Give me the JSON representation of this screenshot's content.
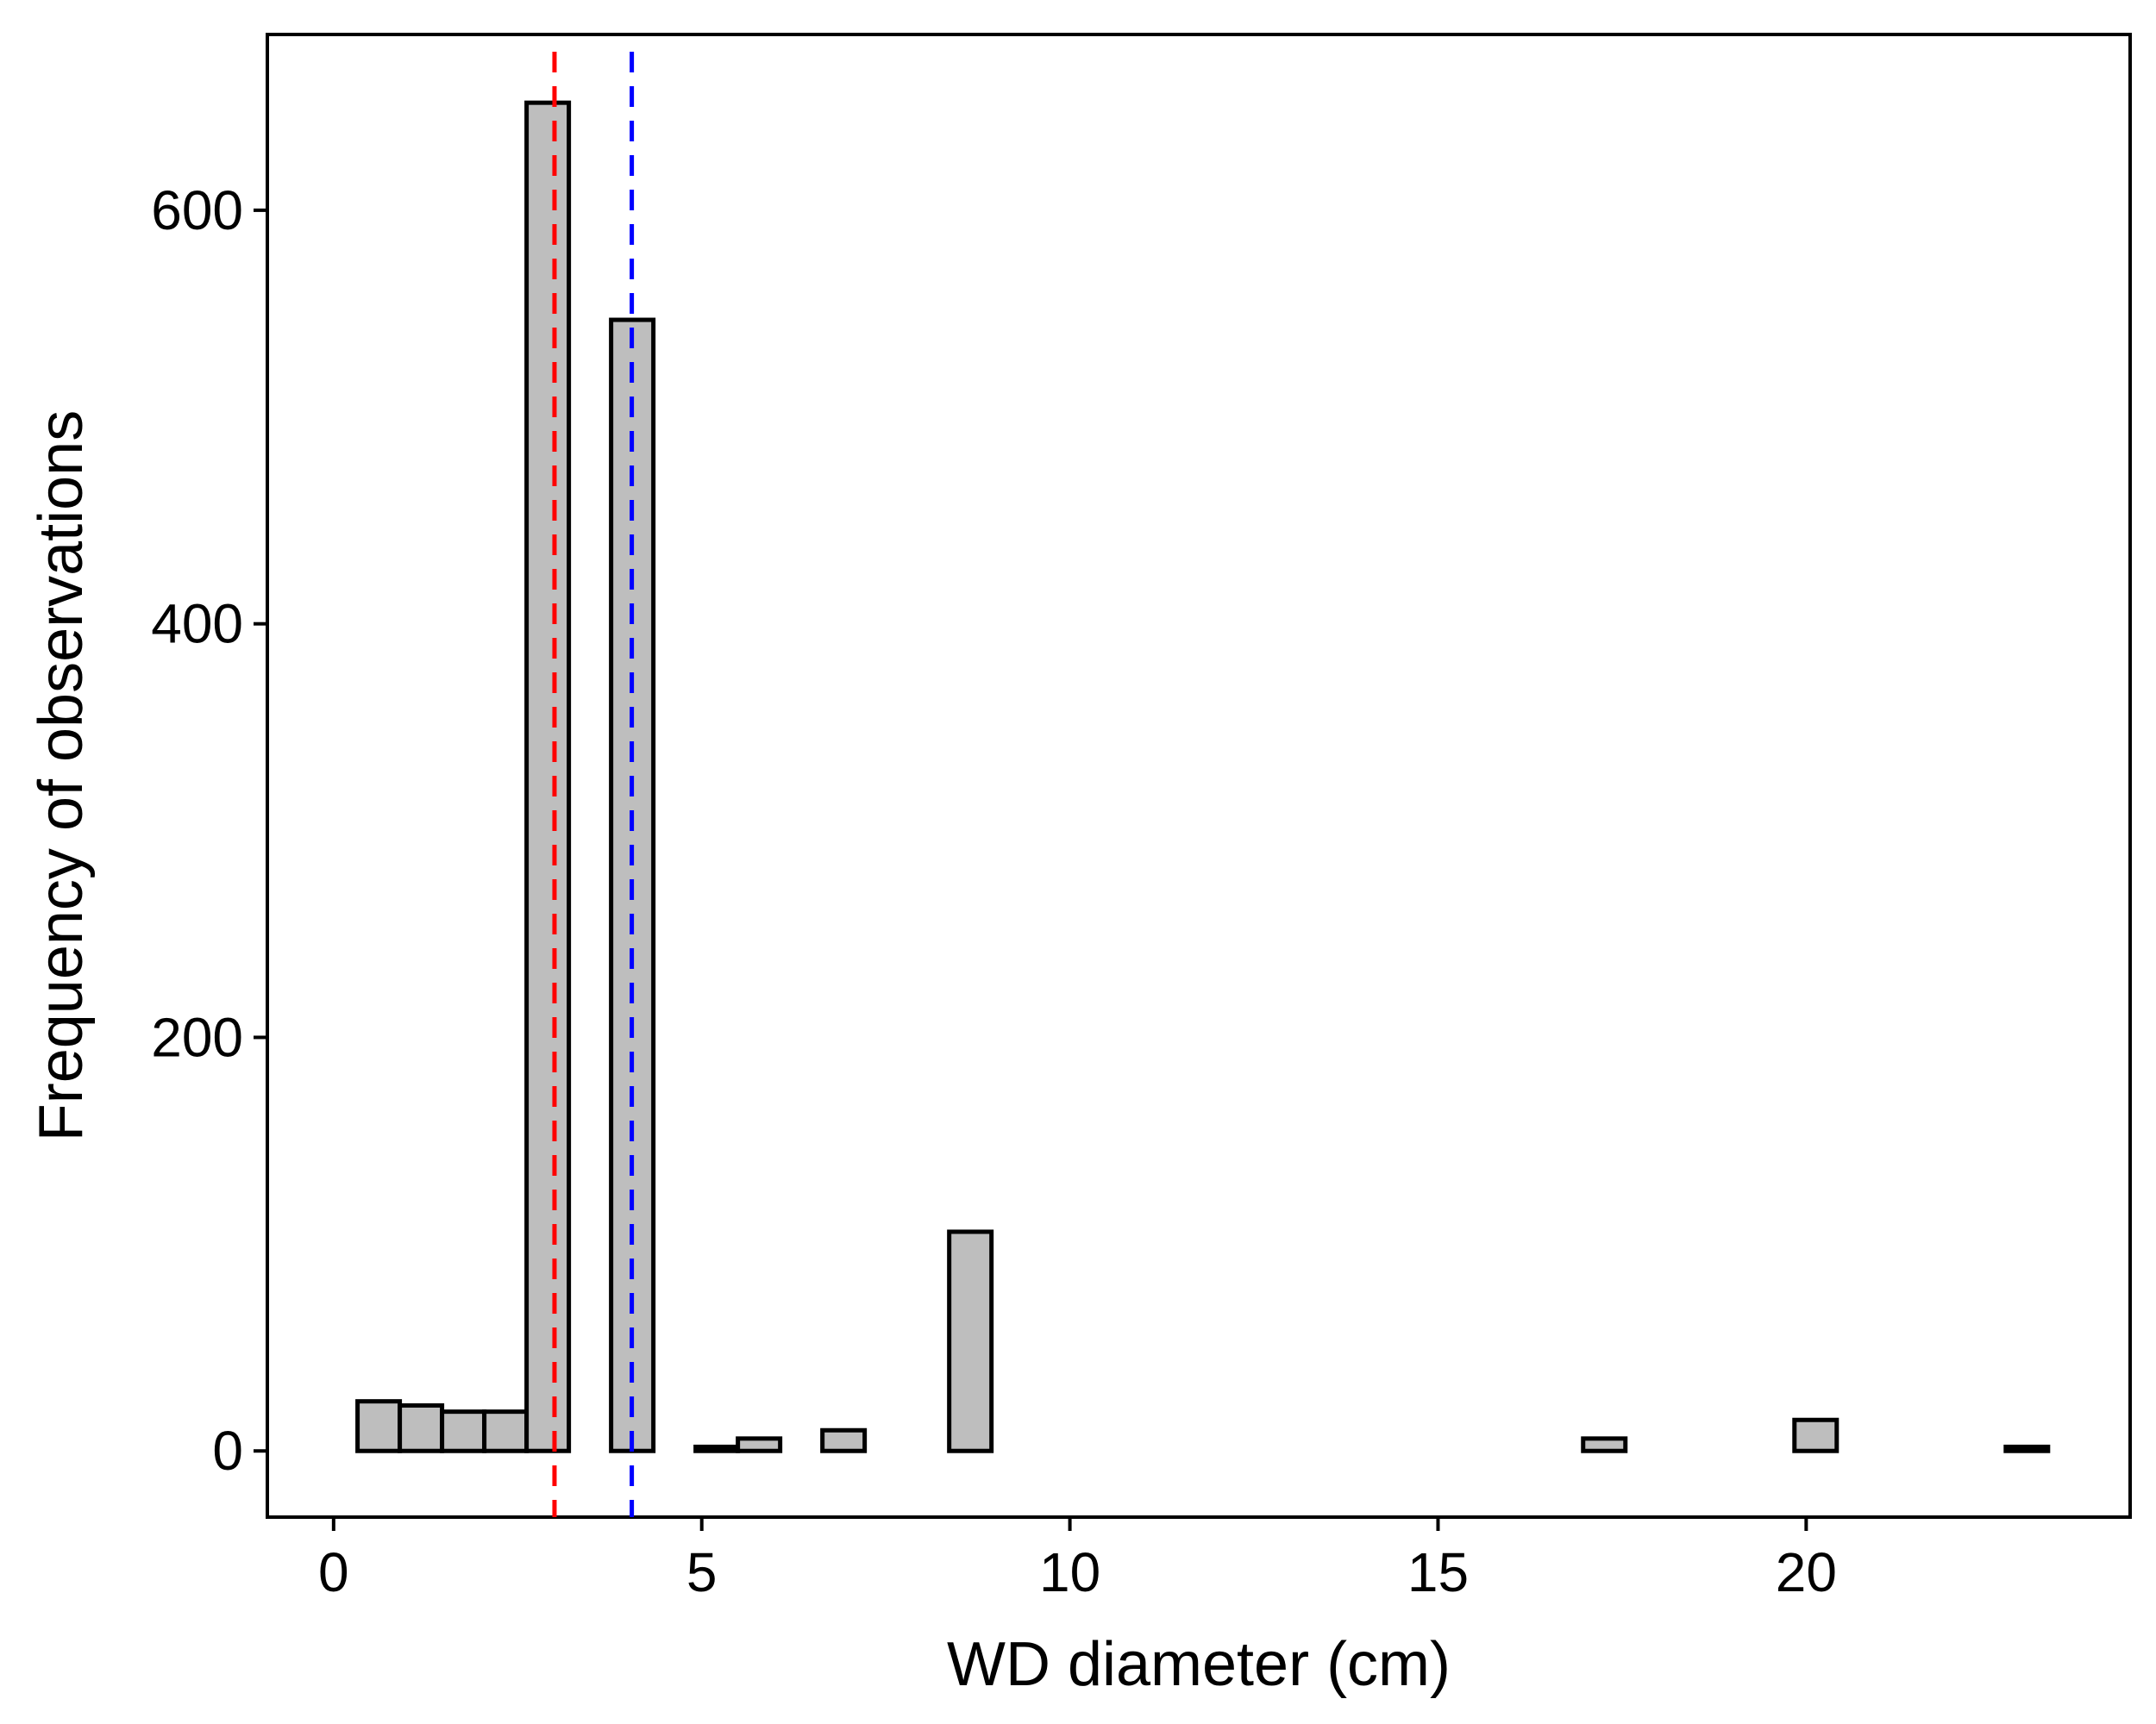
{
  "chart_data": {
    "type": "bar",
    "title": "",
    "xlabel": "WD diameter (cm)",
    "ylabel": "Frequency of observations",
    "xlim": [
      -0.9,
      24.4
    ],
    "ylim": [
      -32,
      685
    ],
    "x_ticks": [
      {
        "value": 0,
        "label": "0"
      },
      {
        "value": 5,
        "label": "5"
      },
      {
        "value": 10,
        "label": "10"
      },
      {
        "value": 15,
        "label": "15"
      },
      {
        "value": 20,
        "label": "20"
      }
    ],
    "y_ticks": [
      {
        "value": 0,
        "label": "0"
      },
      {
        "value": 200,
        "label": "200"
      },
      {
        "value": 400,
        "label": "400"
      },
      {
        "value": 600,
        "label": "600"
      }
    ],
    "bin_width": 0.574,
    "bin_starts": [
      0.325,
      0.899,
      1.473,
      2.047,
      2.621,
      3.195,
      3.769,
      4.343,
      4.917,
      5.491,
      6.065,
      6.639,
      7.213,
      7.787,
      8.361,
      8.935,
      9.509,
      10.083,
      10.657,
      11.231,
      11.805,
      12.379,
      12.953,
      13.527,
      14.101,
      14.675,
      15.249,
      15.823,
      16.397,
      16.971,
      17.545,
      18.119,
      18.693,
      19.267,
      19.841,
      20.415,
      20.989,
      21.563,
      22.137,
      22.711
    ],
    "values": [
      24,
      22,
      19,
      19,
      652,
      0,
      547,
      0,
      2,
      6,
      0,
      10,
      0,
      0,
      106,
      0,
      0,
      0,
      0,
      0,
      0,
      0,
      0,
      0,
      0,
      0,
      0,
      0,
      0,
      6,
      0,
      0,
      0,
      0,
      15,
      0,
      0,
      0,
      0,
      2
    ],
    "bar_fill": "#bebebe",
    "bar_stroke": "#000000",
    "vlines": [
      {
        "x": 3.0,
        "color": "#ff0000",
        "style": "dashed"
      },
      {
        "x": 4.05,
        "color": "#0000ff",
        "style": "dashed"
      }
    ],
    "grid": false,
    "legend": "none"
  }
}
